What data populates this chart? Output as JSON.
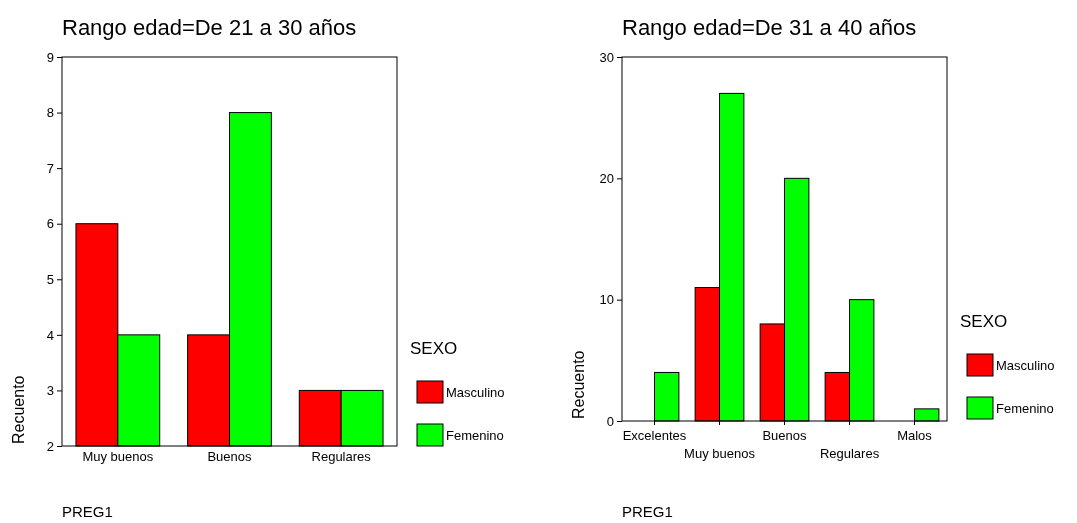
{
  "chart_data": [
    {
      "type": "bar",
      "title": "Rango edad=De 21 a 30 años",
      "xlabel": "PREG1",
      "ylabel": "Recuento",
      "legend_title": "SEXO",
      "legend": "right",
      "grid": false,
      "categories": [
        "Muy buenos",
        "Buenos",
        "Regulares"
      ],
      "series": [
        {
          "name": "Masculino",
          "color": "#ff0000",
          "values": [
            6,
            4,
            3
          ]
        },
        {
          "name": "Femenino",
          "color": "#00ff00",
          "values": [
            4,
            8,
            3
          ]
        }
      ],
      "ylim": [
        2,
        9
      ],
      "yticks": [
        2,
        3,
        4,
        5,
        6,
        7,
        8,
        9
      ]
    },
    {
      "type": "bar",
      "title": "Rango edad=De 31 a 40 años",
      "xlabel": "PREG1",
      "ylabel": "Recuento",
      "legend_title": "SEXO",
      "legend": "right",
      "grid": false,
      "categories": [
        "Excelentes",
        "Muy buenos",
        "Buenos",
        "Regulares",
        "Malos"
      ],
      "series": [
        {
          "name": "Masculino",
          "color": "#ff0000",
          "values": [
            0,
            11,
            8,
            4,
            0
          ]
        },
        {
          "name": "Femenino",
          "color": "#00ff00",
          "values": [
            4,
            27,
            20,
            10,
            1
          ]
        }
      ],
      "ylim": [
        0,
        30
      ],
      "yticks": [
        0,
        10,
        20,
        30
      ]
    }
  ]
}
